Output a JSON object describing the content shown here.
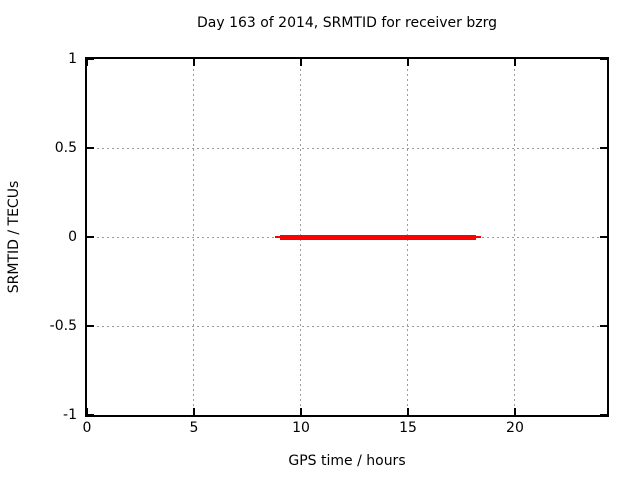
{
  "chart_data": {
    "type": "line",
    "title": "Day 163 of 2014, SRMTID for receiver bzrg",
    "xlabel": "GPS time / hours",
    "ylabel": "SRMTID / TECUs",
    "xlim": [
      0,
      24.3
    ],
    "ylim": [
      -1,
      1
    ],
    "xticks": [
      0,
      5,
      10,
      15,
      20
    ],
    "xtick_labels": [
      "0",
      "5",
      "10",
      "15",
      "20"
    ],
    "yticks": [
      1,
      0.5,
      0,
      -0.5,
      -1
    ],
    "ytick_labels": [
      "1",
      "0.5",
      "0",
      "-0.5",
      "-1"
    ],
    "grid": true,
    "grid_style": "dashed",
    "legend_position": "none",
    "colors": {
      "background": "#ffffff",
      "frame": "#000000",
      "grid": "#9c9c9c",
      "text": "#000000",
      "series": "#ff0000"
    },
    "series": [
      {
        "name": "SRMTID",
        "color": "#ff0000",
        "y_value": 0,
        "x_start": 8.8,
        "x_end": 18.4,
        "segments": [
          {
            "x1": 8.8,
            "x2": 18.4,
            "y": 0,
            "line_width": 2
          },
          {
            "x1": 9.0,
            "x2": 18.2,
            "y": 0,
            "line_width": 5
          }
        ]
      }
    ]
  }
}
